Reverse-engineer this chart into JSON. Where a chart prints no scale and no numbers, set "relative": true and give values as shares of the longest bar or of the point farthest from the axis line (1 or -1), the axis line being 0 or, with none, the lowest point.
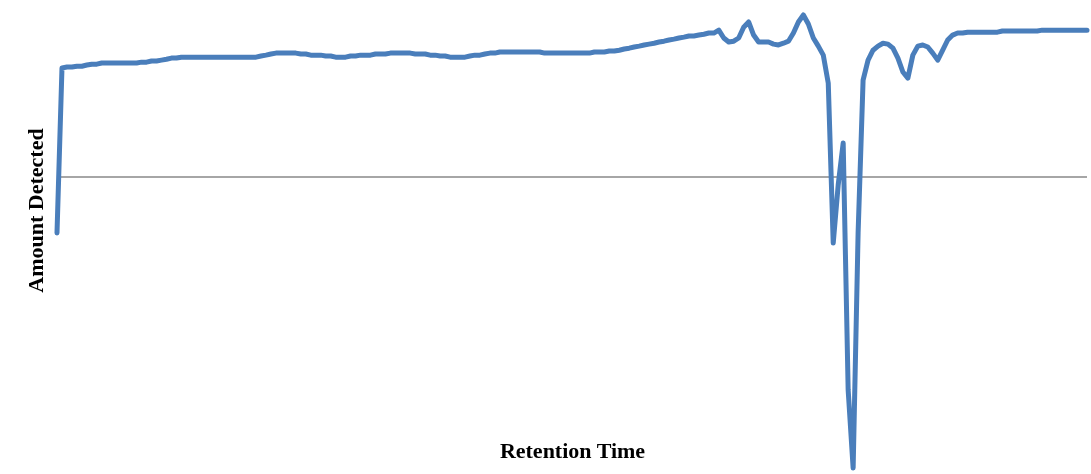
{
  "chart_data": {
    "type": "line",
    "relative": true,
    "xlabel": "Retention Time",
    "ylabel": "Amount Detected",
    "marker": "none",
    "line_style": "solid",
    "categories": [
      null,
      null,
      null,
      null,
      null,
      null,
      null,
      null,
      null,
      null,
      null,
      null,
      null,
      null,
      null,
      null,
      null,
      null,
      null,
      null,
      null,
      null,
      null,
      null,
      null,
      null,
      null,
      null,
      null,
      null,
      null,
      null,
      null,
      null,
      null,
      null,
      null,
      null,
      null,
      null,
      null,
      null,
      null,
      null,
      null,
      null,
      null,
      null,
      null,
      null,
      null,
      null,
      null,
      null,
      null,
      null,
      null,
      null,
      null,
      null,
      null,
      null,
      null,
      null,
      null,
      null,
      null,
      null,
      null,
      null,
      null,
      null,
      null,
      null,
      null,
      null,
      null,
      null,
      null,
      null,
      null,
      null,
      null,
      null,
      null,
      null,
      null,
      null,
      null,
      null,
      null,
      null,
      null,
      null,
      null,
      null,
      null,
      null,
      null,
      null,
      null,
      null,
      null,
      null,
      null,
      null,
      null,
      null,
      null,
      null,
      null,
      null,
      null,
      null,
      null,
      null,
      null,
      null,
      null,
      null,
      null,
      null,
      null,
      null,
      null,
      null,
      null,
      null,
      null,
      null,
      null,
      null,
      null,
      null,
      null,
      null,
      null,
      null,
      null,
      null,
      null,
      null,
      null,
      null,
      null,
      null,
      null,
      null,
      null,
      null,
      null,
      null,
      null,
      null,
      null,
      null,
      null,
      null,
      null,
      null,
      null,
      null,
      null,
      null,
      null,
      null,
      null,
      null,
      null,
      null,
      null,
      null,
      null,
      null,
      null,
      null,
      null,
      null,
      null,
      null,
      null,
      null,
      null,
      null,
      null,
      null,
      null,
      null,
      null,
      null,
      null,
      null,
      null,
      null,
      null,
      null,
      null,
      null,
      null,
      null,
      null,
      null,
      null,
      null,
      null,
      null,
      null,
      null
    ],
    "series": [
      {
        "color": "#4a7ebb",
        "values": [
          -0.192,
          0.375,
          0.378,
          0.378,
          0.381,
          0.381,
          0.385,
          0.388,
          0.388,
          0.392,
          0.392,
          0.392,
          0.392,
          0.392,
          0.392,
          0.392,
          0.392,
          0.395,
          0.395,
          0.399,
          0.399,
          0.402,
          0.405,
          0.409,
          0.409,
          0.412,
          0.412,
          0.412,
          0.412,
          0.412,
          0.412,
          0.412,
          0.412,
          0.412,
          0.412,
          0.412,
          0.412,
          0.412,
          0.412,
          0.412,
          0.412,
          0.416,
          0.419,
          0.423,
          0.426,
          0.426,
          0.426,
          0.426,
          0.426,
          0.423,
          0.423,
          0.419,
          0.419,
          0.419,
          0.416,
          0.416,
          0.412,
          0.412,
          0.412,
          0.416,
          0.416,
          0.419,
          0.419,
          0.419,
          0.423,
          0.423,
          0.423,
          0.426,
          0.426,
          0.426,
          0.426,
          0.426,
          0.423,
          0.423,
          0.423,
          0.419,
          0.419,
          0.416,
          0.416,
          0.412,
          0.412,
          0.412,
          0.412,
          0.416,
          0.419,
          0.419,
          0.423,
          0.426,
          0.426,
          0.43,
          0.43,
          0.43,
          0.43,
          0.43,
          0.43,
          0.43,
          0.43,
          0.43,
          0.426,
          0.426,
          0.426,
          0.426,
          0.426,
          0.426,
          0.426,
          0.426,
          0.426,
          0.426,
          0.43,
          0.43,
          0.43,
          0.433,
          0.433,
          0.436,
          0.44,
          0.443,
          0.447,
          0.45,
          0.454,
          0.457,
          0.46,
          0.464,
          0.467,
          0.471,
          0.474,
          0.478,
          0.481,
          0.485,
          0.485,
          0.488,
          0.491,
          0.495,
          0.495,
          0.505,
          0.478,
          0.464,
          0.467,
          0.478,
          0.515,
          0.533,
          0.488,
          0.464,
          0.464,
          0.464,
          0.457,
          0.454,
          0.46,
          0.467,
          0.495,
          0.533,
          0.557,
          0.526,
          0.478,
          0.45,
          0.419,
          0.323,
          -0.227,
          -0.027,
          0.117,
          -0.732,
          -1,
          -0.192,
          0.333,
          0.402,
          0.436,
          0.45,
          0.46,
          0.457,
          0.443,
          0.409,
          0.361,
          0.34,
          0.419,
          0.45,
          0.454,
          0.447,
          0.426,
          0.402,
          0.436,
          0.471,
          0.488,
          0.495,
          0.495,
          0.498,
          0.498,
          0.498,
          0.498,
          0.498,
          0.498,
          0.498,
          0.502,
          0.502,
          0.502,
          0.502,
          0.502,
          0.502,
          0.502,
          0.502,
          0.505,
          0.505,
          0.505,
          0.505,
          0.505,
          0.505,
          0.505,
          0.505,
          0.505,
          0.505
        ]
      }
    ]
  }
}
